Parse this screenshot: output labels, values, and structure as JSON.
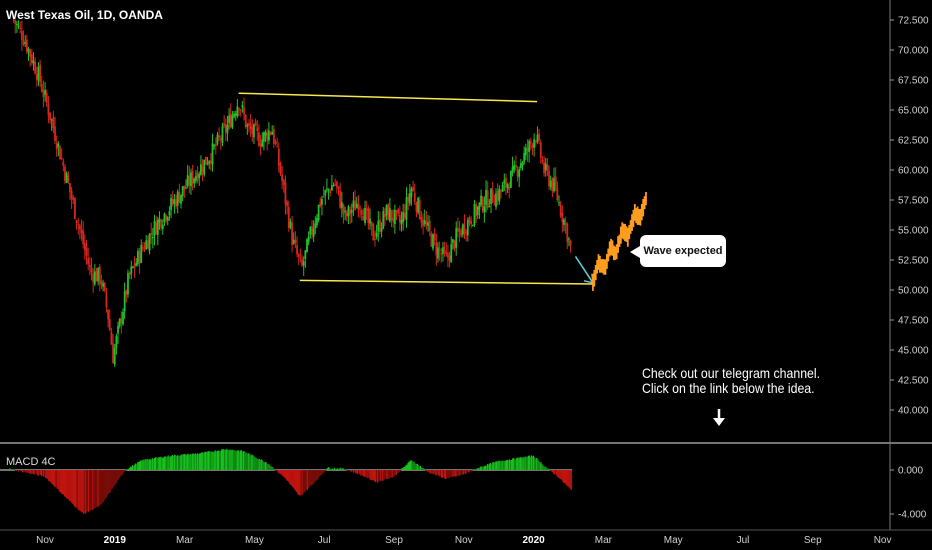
{
  "header": {
    "title": "West Texas Oil, 1D, OANDA"
  },
  "macd": {
    "label": "MACD 4C",
    "ticks": [
      "0.000",
      "-4.000"
    ],
    "values": [
      0,
      -4
    ]
  },
  "annotations": {
    "callout": "Wave expected",
    "note_line1": "Check out our telegram channel.",
    "note_line2": "Click on the link below the idea."
  },
  "colors": {
    "background": "#000000",
    "up": "#22c32a",
    "down": "#d8261c",
    "channel": "#f5e94b",
    "projection": "#ff9d1f",
    "arrow": "#5fd3e6",
    "macd_up": "#19c21e",
    "macd_down": "#c0140f"
  },
  "chart_data": {
    "type": "candlestick",
    "instrument": "West Texas Oil",
    "timeframe": "1D",
    "source": "OANDA",
    "y_ticks": [
      "72.500",
      "70.000",
      "67.500",
      "65.000",
      "62.500",
      "60.000",
      "57.500",
      "55.000",
      "52.500",
      "50.000",
      "47.500",
      "45.000",
      "42.500",
      "40.000"
    ],
    "y_values": [
      72.5,
      70,
      67.5,
      65,
      62.5,
      60,
      57.5,
      55,
      52.5,
      50,
      47.5,
      45,
      42.5,
      40
    ],
    "x_ticks": [
      {
        "label": "Nov",
        "t": 0
      },
      {
        "label": "2019",
        "t": 2,
        "bold": true
      },
      {
        "label": "Mar",
        "t": 4
      },
      {
        "label": "May",
        "t": 6
      },
      {
        "label": "Jul",
        "t": 8
      },
      {
        "label": "Sep",
        "t": 10
      },
      {
        "label": "Nov",
        "t": 12
      },
      {
        "label": "2020",
        "t": 14,
        "bold": true
      },
      {
        "label": "Mar",
        "t": 16
      },
      {
        "label": "May",
        "t": 18
      },
      {
        "label": "Jul",
        "t": 20
      },
      {
        "label": "Sep",
        "t": 22
      },
      {
        "label": "Nov",
        "t": 24
      }
    ],
    "price_path": [
      {
        "t": -0.9,
        "p": 72.5
      },
      {
        "t": -0.6,
        "p": 71.0
      },
      {
        "t": -0.2,
        "p": 68.0
      },
      {
        "t": 0.2,
        "p": 64.0
      },
      {
        "t": 0.6,
        "p": 59.5
      },
      {
        "t": 1.0,
        "p": 55.0
      },
      {
        "t": 1.3,
        "p": 51.5
      },
      {
        "t": 1.6,
        "p": 51.0
      },
      {
        "t": 1.8,
        "p": 48.0
      },
      {
        "t": 1.95,
        "p": 44.5
      },
      {
        "t": 2.1,
        "p": 46.5
      },
      {
        "t": 2.4,
        "p": 51.0
      },
      {
        "t": 2.8,
        "p": 53.5
      },
      {
        "t": 3.2,
        "p": 55.5
      },
      {
        "t": 3.6,
        "p": 57.0
      },
      {
        "t": 4.0,
        "p": 58.5
      },
      {
        "t": 4.4,
        "p": 60.0
      },
      {
        "t": 4.8,
        "p": 61.5
      },
      {
        "t": 5.2,
        "p": 63.5
      },
      {
        "t": 5.55,
        "p": 65.8
      },
      {
        "t": 5.8,
        "p": 63.5
      },
      {
        "t": 6.2,
        "p": 62.5
      },
      {
        "t": 6.5,
        "p": 63.5
      },
      {
        "t": 6.8,
        "p": 59.0
      },
      {
        "t": 7.1,
        "p": 54.0
      },
      {
        "t": 7.35,
        "p": 51.7
      },
      {
        "t": 7.6,
        "p": 54.5
      },
      {
        "t": 7.9,
        "p": 57.5
      },
      {
        "t": 8.3,
        "p": 59.0
      },
      {
        "t": 8.6,
        "p": 56.0
      },
      {
        "t": 9.0,
        "p": 57.5
      },
      {
        "t": 9.4,
        "p": 54.5
      },
      {
        "t": 9.8,
        "p": 56.5
      },
      {
        "t": 10.2,
        "p": 55.5
      },
      {
        "t": 10.5,
        "p": 58.5
      },
      {
        "t": 10.8,
        "p": 56.0
      },
      {
        "t": 11.2,
        "p": 53.5
      },
      {
        "t": 11.5,
        "p": 52.5
      },
      {
        "t": 11.8,
        "p": 54.5
      },
      {
        "t": 12.2,
        "p": 56.0
      },
      {
        "t": 12.6,
        "p": 57.5
      },
      {
        "t": 13.0,
        "p": 58.0
      },
      {
        "t": 13.4,
        "p": 59.5
      },
      {
        "t": 13.8,
        "p": 61.5
      },
      {
        "t": 14.05,
        "p": 63.0
      },
      {
        "t": 14.3,
        "p": 60.0
      },
      {
        "t": 14.6,
        "p": 58.5
      },
      {
        "t": 14.9,
        "p": 55.5
      },
      {
        "t": 15.1,
        "p": 53.0
      }
    ],
    "channel_upper": [
      {
        "t": 5.55,
        "p": 66.4
      },
      {
        "t": 14.1,
        "p": 65.7
      }
    ],
    "channel_lower": [
      {
        "t": 7.3,
        "p": 50.8
      },
      {
        "t": 15.7,
        "p": 50.5
      }
    ],
    "arrow": [
      {
        "t": 15.2,
        "p": 52.8
      },
      {
        "t": 15.7,
        "p": 50.6
      }
    ],
    "projection": [
      {
        "t": 15.7,
        "p": 50.6
      },
      {
        "t": 15.85,
        "p": 52.2
      },
      {
        "t": 16.05,
        "p": 51.8
      },
      {
        "t": 16.2,
        "p": 53.6
      },
      {
        "t": 16.35,
        "p": 53.0
      },
      {
        "t": 16.55,
        "p": 55.0
      },
      {
        "t": 16.7,
        "p": 54.4
      },
      {
        "t": 16.9,
        "p": 56.4
      },
      {
        "t": 17.05,
        "p": 56.0
      },
      {
        "t": 17.25,
        "p": 57.9
      }
    ],
    "macd_series": [
      {
        "t": -1.0,
        "v": 0.1
      },
      {
        "t": 0.0,
        "v": -0.6
      },
      {
        "t": 0.6,
        "v": -2.5
      },
      {
        "t": 1.1,
        "v": -4.0
      },
      {
        "t": 1.6,
        "v": -3.2
      },
      {
        "t": 2.0,
        "v": -1.4
      },
      {
        "t": 2.3,
        "v": 0.0
      },
      {
        "t": 2.8,
        "v": 0.9
      },
      {
        "t": 3.6,
        "v": 1.3
      },
      {
        "t": 4.4,
        "v": 1.5
      },
      {
        "t": 5.2,
        "v": 1.9
      },
      {
        "t": 5.7,
        "v": 1.7
      },
      {
        "t": 6.4,
        "v": 0.6
      },
      {
        "t": 6.9,
        "v": -0.8
      },
      {
        "t": 7.3,
        "v": -2.4
      },
      {
        "t": 7.7,
        "v": -1.2
      },
      {
        "t": 8.1,
        "v": 0.2
      },
      {
        "t": 8.6,
        "v": 0.1
      },
      {
        "t": 9.1,
        "v": -0.5
      },
      {
        "t": 9.5,
        "v": -1.1
      },
      {
        "t": 10.0,
        "v": -0.6
      },
      {
        "t": 10.5,
        "v": 0.9
      },
      {
        "t": 11.0,
        "v": -0.2
      },
      {
        "t": 11.5,
        "v": -0.8
      },
      {
        "t": 12.0,
        "v": -0.4
      },
      {
        "t": 12.5,
        "v": 0.3
      },
      {
        "t": 13.0,
        "v": 0.8
      },
      {
        "t": 13.6,
        "v": 1.1
      },
      {
        "t": 14.0,
        "v": 1.3
      },
      {
        "t": 14.3,
        "v": 0.4
      },
      {
        "t": 14.7,
        "v": -0.6
      },
      {
        "t": 15.1,
        "v": -1.9
      }
    ]
  }
}
